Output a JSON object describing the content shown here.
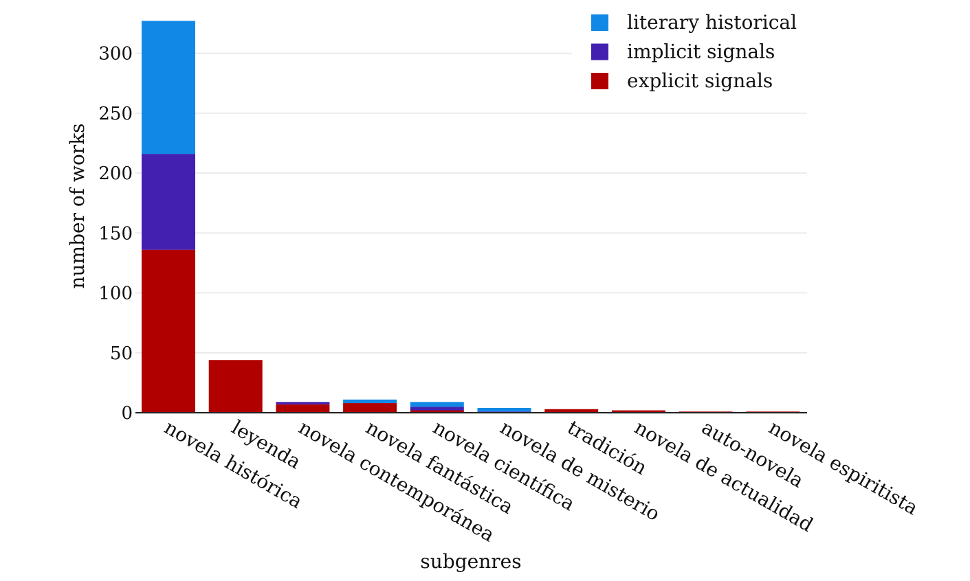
{
  "chart_data": {
    "type": "bar",
    "stacked": true,
    "title": "",
    "xlabel": "subgenres",
    "ylabel": "number of works",
    "ylim": [
      0,
      327
    ],
    "yticks": [
      0,
      50,
      100,
      150,
      200,
      250,
      300
    ],
    "grid": true,
    "legend_position": "top-right",
    "categories": [
      "novela histórica",
      "leyenda",
      "novela contemporánea",
      "novela fantástica",
      "novela científica",
      "novela de misterio",
      "tradición",
      "novela de actualidad",
      "auto-novela",
      "novela espiritista"
    ],
    "series": [
      {
        "name": "explicit signals",
        "color": "#b00000",
        "values": [
          136,
          44,
          7,
          8,
          2,
          0,
          3,
          2,
          1,
          1
        ]
      },
      {
        "name": "implicit signals",
        "color": "#4320b0",
        "values": [
          80,
          0,
          2,
          0,
          3,
          1,
          0,
          0,
          0,
          0
        ]
      },
      {
        "name": "literary historical",
        "color": "#1188e6",
        "values": [
          111,
          0,
          0,
          3,
          4,
          3,
          0,
          0,
          0,
          0
        ]
      }
    ],
    "legend_order": [
      "literary historical",
      "implicit signals",
      "explicit signals"
    ]
  }
}
